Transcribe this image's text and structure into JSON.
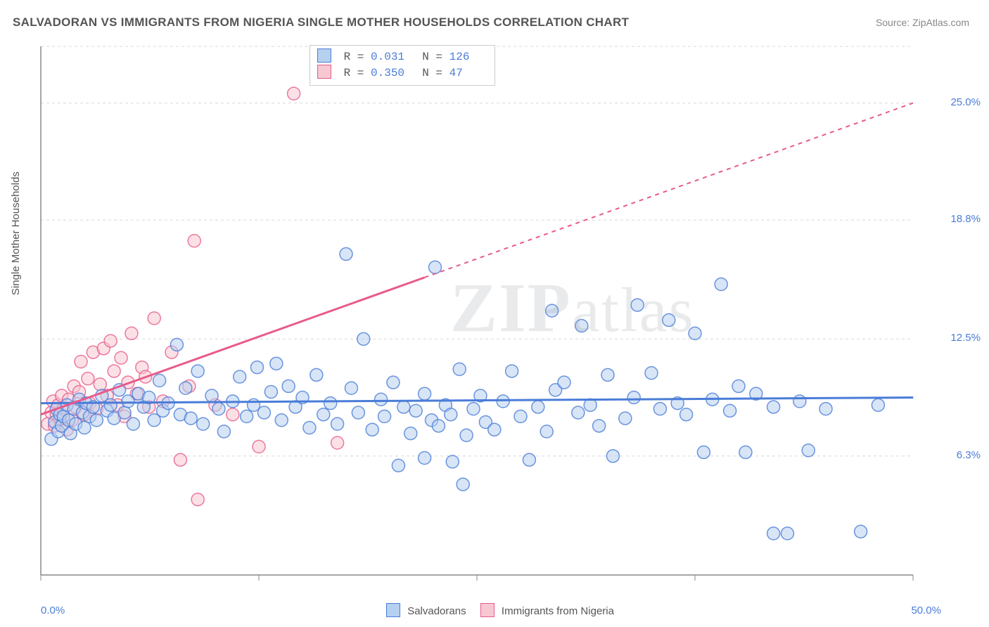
{
  "title": "SALVADORAN VS IMMIGRANTS FROM NIGERIA SINGLE MOTHER HOUSEHOLDS CORRELATION CHART",
  "source": "Source: ZipAtlas.com",
  "ylabel": "Single Mother Households",
  "watermark": {
    "bold": "ZIP",
    "light": "atlas"
  },
  "series": {
    "a": {
      "name": "Salvadorans",
      "fill": "#b6d0ef",
      "stroke": "#4a7cd8",
      "R": "0.031",
      "N": "126",
      "line": {
        "x1": 0,
        "y1": 9.1,
        "x2": 50,
        "y2": 9.4,
        "dash_from_x": 50
      }
    },
    "b": {
      "name": "Immigrants from Nigeria",
      "fill": "#f7c8d2",
      "stroke": "#e85a8a",
      "R": "0.350",
      "N": "47",
      "line": {
        "x1": 0,
        "y1": 8.5,
        "x2": 50,
        "y2": 25.0,
        "dash_from_x": 22
      }
    }
  },
  "chart": {
    "xlim": [
      0,
      50
    ],
    "ylim": [
      0,
      28
    ],
    "x_ticks": [
      0,
      12.5,
      25,
      37.5,
      50
    ],
    "y_grid": [
      6.3,
      12.5,
      18.8,
      25.0,
      28
    ],
    "y_tick_labels": [
      "6.3%",
      "12.5%",
      "18.8%",
      "25.0%"
    ],
    "x_min_label": "0.0%",
    "x_max_label": "50.0%",
    "grid_color": "#d8d8d8",
    "axis_color": "#888",
    "point_radius": 9
  },
  "points_a": [
    [
      0.6,
      7.2
    ],
    [
      0.8,
      8.1
    ],
    [
      0.9,
      8.8
    ],
    [
      1.0,
      7.6
    ],
    [
      1.1,
      8.5
    ],
    [
      1.2,
      7.9
    ],
    [
      1.3,
      8.4
    ],
    [
      1.5,
      9.0
    ],
    [
      1.6,
      8.2
    ],
    [
      1.7,
      7.5
    ],
    [
      1.9,
      8.8
    ],
    [
      2.0,
      8.0
    ],
    [
      2.2,
      9.3
    ],
    [
      2.4,
      8.6
    ],
    [
      2.5,
      7.8
    ],
    [
      2.6,
      9.1
    ],
    [
      2.8,
      8.4
    ],
    [
      3.0,
      8.9
    ],
    [
      3.2,
      8.2
    ],
    [
      3.5,
      9.5
    ],
    [
      3.8,
      8.7
    ],
    [
      4.0,
      9.0
    ],
    [
      4.2,
      8.3
    ],
    [
      4.5,
      9.8
    ],
    [
      4.8,
      8.6
    ],
    [
      5.0,
      9.2
    ],
    [
      5.3,
      8.0
    ],
    [
      5.6,
      9.6
    ],
    [
      5.9,
      8.9
    ],
    [
      6.2,
      9.4
    ],
    [
      6.5,
      8.2
    ],
    [
      6.8,
      10.3
    ],
    [
      7.0,
      8.7
    ],
    [
      7.3,
      9.1
    ],
    [
      7.8,
      12.2
    ],
    [
      8.0,
      8.5
    ],
    [
      8.3,
      9.9
    ],
    [
      8.6,
      8.3
    ],
    [
      9.0,
      10.8
    ],
    [
      9.3,
      8.0
    ],
    [
      9.8,
      9.5
    ],
    [
      10.2,
      8.8
    ],
    [
      10.5,
      7.6
    ],
    [
      11.0,
      9.2
    ],
    [
      11.4,
      10.5
    ],
    [
      11.8,
      8.4
    ],
    [
      12.2,
      9.0
    ],
    [
      12.4,
      11.0
    ],
    [
      12.8,
      8.6
    ],
    [
      13.2,
      9.7
    ],
    [
      13.5,
      11.2
    ],
    [
      13.8,
      8.2
    ],
    [
      14.2,
      10.0
    ],
    [
      14.6,
      8.9
    ],
    [
      15.0,
      9.4
    ],
    [
      15.4,
      7.8
    ],
    [
      15.8,
      10.6
    ],
    [
      16.2,
      8.5
    ],
    [
      16.6,
      9.1
    ],
    [
      17.0,
      8.0
    ],
    [
      17.5,
      17.0
    ],
    [
      17.8,
      9.9
    ],
    [
      18.2,
      8.6
    ],
    [
      18.5,
      12.5
    ],
    [
      19.0,
      7.7
    ],
    [
      19.5,
      9.3
    ],
    [
      19.7,
      8.4
    ],
    [
      20.2,
      10.2
    ],
    [
      20.5,
      5.8
    ],
    [
      20.8,
      8.9
    ],
    [
      21.2,
      7.5
    ],
    [
      21.5,
      8.7
    ],
    [
      22.0,
      9.6
    ],
    [
      22.0,
      6.2
    ],
    [
      22.4,
      8.2
    ],
    [
      22.6,
      16.3
    ],
    [
      22.8,
      7.9
    ],
    [
      23.2,
      9.0
    ],
    [
      23.5,
      8.5
    ],
    [
      23.6,
      6.0
    ],
    [
      24.0,
      10.9
    ],
    [
      24.2,
      4.8
    ],
    [
      24.4,
      7.4
    ],
    [
      24.8,
      8.8
    ],
    [
      25.2,
      9.5
    ],
    [
      25.5,
      8.1
    ],
    [
      26.0,
      7.7
    ],
    [
      26.5,
      9.2
    ],
    [
      27.0,
      10.8
    ],
    [
      27.5,
      8.4
    ],
    [
      28.0,
      6.1
    ],
    [
      28.5,
      8.9
    ],
    [
      29.0,
      7.6
    ],
    [
      29.3,
      14.0
    ],
    [
      29.5,
      9.8
    ],
    [
      30.0,
      10.2
    ],
    [
      30.8,
      8.6
    ],
    [
      31.0,
      13.2
    ],
    [
      31.5,
      9.0
    ],
    [
      32.0,
      7.9
    ],
    [
      32.5,
      10.6
    ],
    [
      32.8,
      6.3
    ],
    [
      33.5,
      8.3
    ],
    [
      34.0,
      9.4
    ],
    [
      34.2,
      14.3
    ],
    [
      35.0,
      10.7
    ],
    [
      35.5,
      8.8
    ],
    [
      36.0,
      13.5
    ],
    [
      36.5,
      9.1
    ],
    [
      37.0,
      8.5
    ],
    [
      37.5,
      12.8
    ],
    [
      38.0,
      6.5
    ],
    [
      38.5,
      9.3
    ],
    [
      39.0,
      15.4
    ],
    [
      39.5,
      8.7
    ],
    [
      40.0,
      10.0
    ],
    [
      40.4,
      6.5
    ],
    [
      41.0,
      9.6
    ],
    [
      42.0,
      8.9
    ],
    [
      42.0,
      2.2
    ],
    [
      42.8,
      2.2
    ],
    [
      43.5,
      9.2
    ],
    [
      44.0,
      6.6
    ],
    [
      45.0,
      8.8
    ],
    [
      47.0,
      2.3
    ],
    [
      48.0,
      9.0
    ]
  ],
  "points_b": [
    [
      0.4,
      8.0
    ],
    [
      0.6,
      8.6
    ],
    [
      0.7,
      9.2
    ],
    [
      0.8,
      7.9
    ],
    [
      0.9,
      8.5
    ],
    [
      1.0,
      9.0
    ],
    [
      1.1,
      8.3
    ],
    [
      1.2,
      9.5
    ],
    [
      1.3,
      8.8
    ],
    [
      1.5,
      7.7
    ],
    [
      1.6,
      9.3
    ],
    [
      1.8,
      8.2
    ],
    [
      1.9,
      10.0
    ],
    [
      2.0,
      8.9
    ],
    [
      2.2,
      9.7
    ],
    [
      2.3,
      11.3
    ],
    [
      2.5,
      8.5
    ],
    [
      2.7,
      10.4
    ],
    [
      2.8,
      9.1
    ],
    [
      3.0,
      11.8
    ],
    [
      3.2,
      8.8
    ],
    [
      3.4,
      10.1
    ],
    [
      3.6,
      12.0
    ],
    [
      3.8,
      9.5
    ],
    [
      4.0,
      12.4
    ],
    [
      4.2,
      10.8
    ],
    [
      4.4,
      9.0
    ],
    [
      4.6,
      11.5
    ],
    [
      4.8,
      8.4
    ],
    [
      5.0,
      10.2
    ],
    [
      5.2,
      12.8
    ],
    [
      5.5,
      9.6
    ],
    [
      5.8,
      11.0
    ],
    [
      6.0,
      10.5
    ],
    [
      6.2,
      8.9
    ],
    [
      6.5,
      13.6
    ],
    [
      7.0,
      9.2
    ],
    [
      7.5,
      11.8
    ],
    [
      8.0,
      6.1
    ],
    [
      8.5,
      10.0
    ],
    [
      8.8,
      17.7
    ],
    [
      9.0,
      4.0
    ],
    [
      10.0,
      9.0
    ],
    [
      11.0,
      8.5
    ],
    [
      12.5,
      6.8
    ],
    [
      14.5,
      25.5
    ],
    [
      17.0,
      7.0
    ]
  ]
}
